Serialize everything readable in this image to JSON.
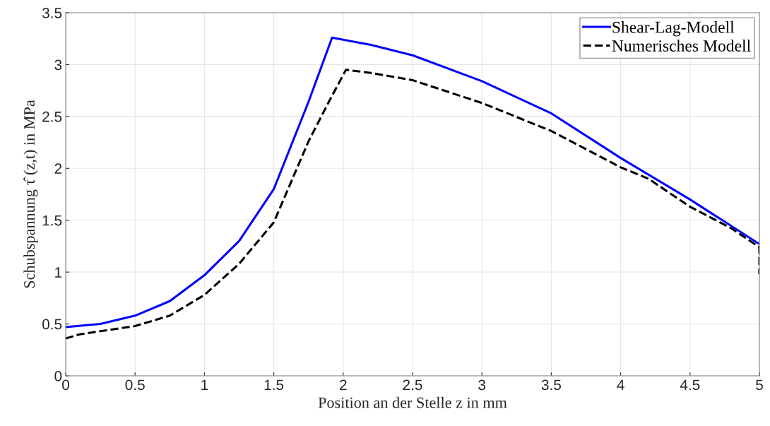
{
  "chart_data": {
    "type": "line",
    "xlabel": "Position an der Stelle z in mm",
    "ylabel": "Schubspannung τ̂ (z,t) in MPa",
    "xlim": [
      0,
      5
    ],
    "ylim": [
      0,
      3.5
    ],
    "xticks": [
      0,
      0.5,
      1,
      1.5,
      2,
      2.5,
      3,
      3.5,
      4,
      4.5,
      5
    ],
    "yticks": [
      0,
      0.5,
      1,
      1.5,
      2,
      2.5,
      3,
      3.5
    ],
    "grid": true,
    "legend": "top right",
    "series": [
      {
        "name": "Shear-Lag-Modell",
        "color": "#0000ff",
        "line_style": "solid",
        "x": [
          0,
          0.25,
          0.5,
          0.75,
          1.0,
          1.25,
          1.5,
          1.75,
          1.92,
          2.2,
          2.5,
          3.0,
          3.5,
          4.0,
          4.5,
          5.0
        ],
        "values": [
          0.47,
          0.5,
          0.58,
          0.72,
          0.97,
          1.3,
          1.8,
          2.64,
          3.26,
          3.19,
          3.09,
          2.84,
          2.53,
          2.1,
          1.7,
          1.27
        ]
      },
      {
        "name": "Numerisches Modell",
        "color": "#000000",
        "line_style": "dashed",
        "x": [
          0,
          0.1,
          0.25,
          0.5,
          0.75,
          1.0,
          1.25,
          1.5,
          1.75,
          1.9,
          2.02,
          2.2,
          2.5,
          3.0,
          3.5,
          4.0,
          4.2,
          4.5,
          4.8,
          5.0,
          5.0
        ],
        "values": [
          0.36,
          0.4,
          0.43,
          0.48,
          0.58,
          0.78,
          1.08,
          1.48,
          2.26,
          2.65,
          2.95,
          2.92,
          2.85,
          2.63,
          2.36,
          2.01,
          1.9,
          1.63,
          1.42,
          1.24,
          0.98
        ]
      }
    ]
  }
}
